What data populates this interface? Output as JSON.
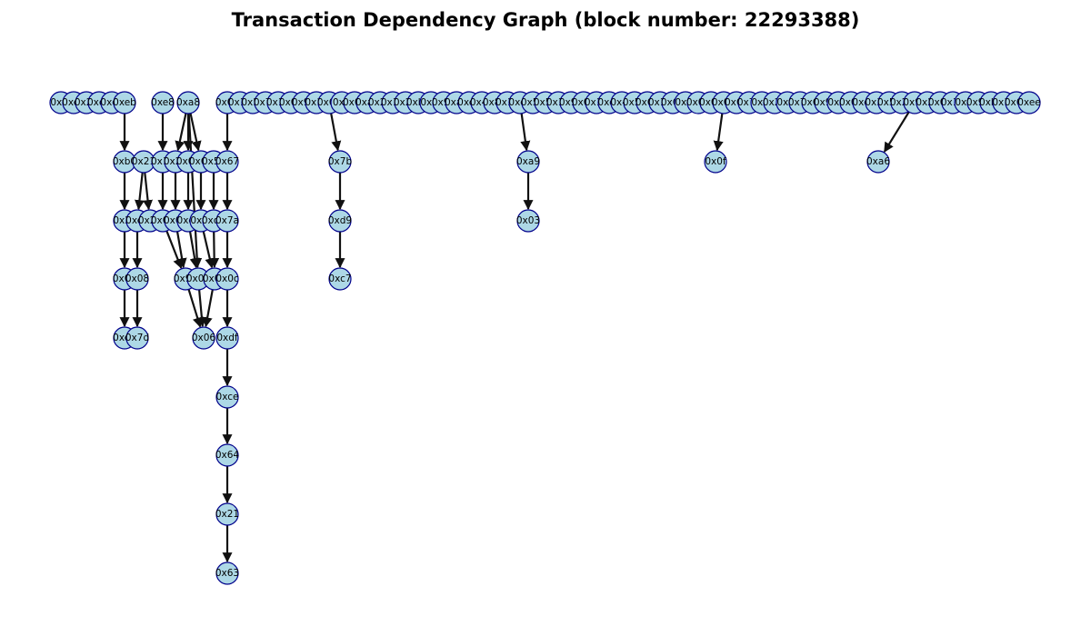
{
  "title": "Transaction Dependency Graph (block number: 22293388)",
  "colors": {
    "node_fill": "#add8e6",
    "node_stroke": "#00008b",
    "edge": "#111111"
  },
  "graph": {
    "nodes": [
      {
        "id": "r0",
        "label": "0xfb"
      },
      {
        "id": "r1",
        "label": "0xe5"
      },
      {
        "id": "r2",
        "label": "0x26"
      },
      {
        "id": "r3",
        "label": "0xde"
      },
      {
        "id": "r4",
        "label": "0xc4"
      },
      {
        "id": "r5",
        "label": "0xeb"
      },
      {
        "id": "r6",
        "label": "0xe8"
      },
      {
        "id": "r7",
        "label": "0xa8"
      },
      {
        "id": "r8",
        "label": "0x05"
      },
      {
        "id": "r9",
        "label": "0x1b"
      },
      {
        "id": "r10",
        "label": "0x5c"
      },
      {
        "id": "r11",
        "label": "0x71"
      },
      {
        "id": "r12",
        "label": "0x16"
      },
      {
        "id": "r13",
        "label": "0x02"
      },
      {
        "id": "r14",
        "label": "0x92"
      },
      {
        "id": "r15",
        "label": "0x1c"
      },
      {
        "id": "r16",
        "label": "0x67"
      },
      {
        "id": "r17",
        "label": "0xff"
      },
      {
        "id": "r18",
        "label": "0x0e"
      },
      {
        "id": "r19",
        "label": "0xa9"
      },
      {
        "id": "r20",
        "label": "0x29"
      },
      {
        "id": "r21",
        "label": "0x1b"
      },
      {
        "id": "r22",
        "label": "0x2b"
      },
      {
        "id": "r23",
        "label": "0xb6"
      },
      {
        "id": "r24",
        "label": "0x7f"
      },
      {
        "id": "r25",
        "label": "0x95"
      },
      {
        "id": "r26",
        "label": "0xa5"
      },
      {
        "id": "r27",
        "label": "0xe4"
      },
      {
        "id": "r28",
        "label": "0x48"
      },
      {
        "id": "r29",
        "label": "0x87"
      },
      {
        "id": "r30",
        "label": "0x1a"
      },
      {
        "id": "r31",
        "label": "0xc9"
      },
      {
        "id": "r32",
        "label": "0x55"
      },
      {
        "id": "r33",
        "label": "0x53"
      },
      {
        "id": "r34",
        "label": "0x15"
      },
      {
        "id": "r35",
        "label": "0x90"
      },
      {
        "id": "r36",
        "label": "0x05"
      },
      {
        "id": "r37",
        "label": "0x10"
      },
      {
        "id": "r38",
        "label": "0xc0"
      },
      {
        "id": "r39",
        "label": "0x4c"
      },
      {
        "id": "r40",
        "label": "0x57"
      },
      {
        "id": "r41",
        "label": "0x6b"
      },
      {
        "id": "r42",
        "label": "0x19"
      },
      {
        "id": "r43",
        "label": "0x61"
      },
      {
        "id": "r44",
        "label": "0xfb"
      },
      {
        "id": "r45",
        "label": "0x02"
      },
      {
        "id": "r46",
        "label": "0x0e"
      },
      {
        "id": "r47",
        "label": "0x09"
      },
      {
        "id": "r48",
        "label": "0x6e"
      },
      {
        "id": "r49",
        "label": "0x74"
      },
      {
        "id": "r50",
        "label": "0xf0"
      },
      {
        "id": "r51",
        "label": "0x25"
      },
      {
        "id": "r52",
        "label": "0x5f"
      },
      {
        "id": "r53",
        "label": "0x7b"
      },
      {
        "id": "r54",
        "label": "0x60"
      },
      {
        "id": "r55",
        "label": "0x90"
      },
      {
        "id": "r56",
        "label": "0x8f"
      },
      {
        "id": "r57",
        "label": "0x0e"
      },
      {
        "id": "r58",
        "label": "0xc5"
      },
      {
        "id": "r59",
        "label": "0x3c"
      },
      {
        "id": "r60",
        "label": "0x5a"
      },
      {
        "id": "r61",
        "label": "0x28"
      },
      {
        "id": "r62",
        "label": "0x9c"
      },
      {
        "id": "r63",
        "label": "0x2c"
      },
      {
        "id": "r64",
        "label": "0x05"
      },
      {
        "id": "r65",
        "label": "0x11"
      },
      {
        "id": "r66",
        "label": "0x7f"
      },
      {
        "id": "r67",
        "label": "0x93"
      },
      {
        "id": "r68",
        "label": "0xba"
      },
      {
        "id": "r69",
        "label": "0x1c"
      },
      {
        "id": "r70",
        "label": "0x6d"
      },
      {
        "id": "r71",
        "label": "0xee"
      },
      {
        "id": "a0",
        "label": "0xb0"
      },
      {
        "id": "a1",
        "label": "0x21"
      },
      {
        "id": "a2",
        "label": "0x1a"
      },
      {
        "id": "a3",
        "label": "0x24"
      },
      {
        "id": "a4",
        "label": "0x0b"
      },
      {
        "id": "a5",
        "label": "0x69"
      },
      {
        "id": "a6",
        "label": "0x5a"
      },
      {
        "id": "a7",
        "label": "0x67"
      },
      {
        "id": "a8",
        "label": "0x7b"
      },
      {
        "id": "a9",
        "label": "0xa9"
      },
      {
        "id": "a10",
        "label": "0x0f"
      },
      {
        "id": "a11",
        "label": "0xa6"
      },
      {
        "id": "b0",
        "label": "0x2c"
      },
      {
        "id": "b1",
        "label": "0xe4"
      },
      {
        "id": "b2",
        "label": "0x25"
      },
      {
        "id": "b3",
        "label": "0x0b"
      },
      {
        "id": "b4",
        "label": "0x0e"
      },
      {
        "id": "b5",
        "label": "0xca"
      },
      {
        "id": "b6",
        "label": "0xf9"
      },
      {
        "id": "b7",
        "label": "0xd7"
      },
      {
        "id": "b8",
        "label": "0x7a"
      },
      {
        "id": "b9",
        "label": "0xd9"
      },
      {
        "id": "b10",
        "label": "0x03"
      },
      {
        "id": "c0",
        "label": "0x08"
      },
      {
        "id": "c1",
        "label": "0x08"
      },
      {
        "id": "c2",
        "label": "0x90"
      },
      {
        "id": "c3",
        "label": "0x07"
      },
      {
        "id": "c4",
        "label": "0x03"
      },
      {
        "id": "c5",
        "label": "0x0c"
      },
      {
        "id": "c6",
        "label": "0xc7"
      },
      {
        "id": "d0",
        "label": "0xe4"
      },
      {
        "id": "d1",
        "label": "0x7d"
      },
      {
        "id": "d2",
        "label": "0x06"
      },
      {
        "id": "d3",
        "label": "0xdf"
      },
      {
        "id": "e0",
        "label": "0xce"
      },
      {
        "id": "f0",
        "label": "0x64"
      },
      {
        "id": "g0",
        "label": "0x21"
      },
      {
        "id": "h0",
        "label": "0x63"
      }
    ],
    "edges": [
      [
        "r5",
        "a0"
      ],
      [
        "r6",
        "a2"
      ],
      [
        "r7",
        "a3"
      ],
      [
        "r7",
        "a4"
      ],
      [
        "r7",
        "a5"
      ],
      [
        "r8",
        "a7"
      ],
      [
        "r16",
        "a8"
      ],
      [
        "r31",
        "a9"
      ],
      [
        "r47",
        "a10"
      ],
      [
        "r62",
        "a11"
      ],
      [
        "a0",
        "b0"
      ],
      [
        "a1",
        "b1"
      ],
      [
        "a1",
        "b2"
      ],
      [
        "a2",
        "b3"
      ],
      [
        "a3",
        "b4"
      ],
      [
        "a4",
        "b5"
      ],
      [
        "a5",
        "b6"
      ],
      [
        "a6",
        "b7"
      ],
      [
        "a7",
        "b8"
      ],
      [
        "a8",
        "b9"
      ],
      [
        "a9",
        "b10"
      ],
      [
        "b0",
        "c0"
      ],
      [
        "b1",
        "c1"
      ],
      [
        "b3",
        "c2"
      ],
      [
        "b4",
        "c2"
      ],
      [
        "b5",
        "c3"
      ],
      [
        "b6",
        "c4"
      ],
      [
        "b7",
        "c4"
      ],
      [
        "b8",
        "c5"
      ],
      [
        "r7",
        "c3"
      ],
      [
        "b9",
        "c6"
      ],
      [
        "c0",
        "d0"
      ],
      [
        "c1",
        "d1"
      ],
      [
        "c2",
        "d2"
      ],
      [
        "c3",
        "d2"
      ],
      [
        "c4",
        "d2"
      ],
      [
        "c5",
        "d3"
      ],
      [
        "d3",
        "e0"
      ],
      [
        "e0",
        "f0"
      ],
      [
        "f0",
        "g0"
      ],
      [
        "g0",
        "h0"
      ]
    ]
  }
}
